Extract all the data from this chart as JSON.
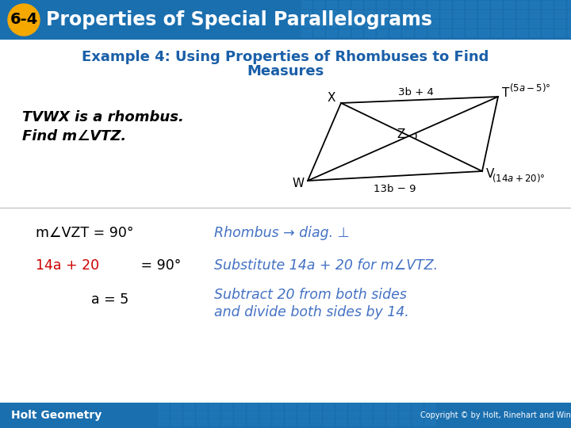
{
  "header_bg": "#1a6faf",
  "header_text": "Properties of Special Parallelograms",
  "header_badge_bg": "#f5a800",
  "header_badge_text": "6-4",
  "title_text_line1": "Example 4: Using Properties of Rhombuses to Find",
  "title_text_line2": "Measures",
  "title_color": "#1a5fa8",
  "body_bg": "#ffffff",
  "problem_line1": "TVWX is a rhombus.",
  "problem_line2": "Find m∠VTZ.",
  "row1_left": "m∠VZT = 90°",
  "row1_right": "Rhombus → diag. ⊥",
  "row2_left_red": "14a + 20",
  "row2_left_black": " = 90°",
  "row2_right": "Substitute 14a + 20 for m∠VTZ.",
  "row3_center": "a = 5",
  "row3_right_line1": "Subtract 20 from both sides",
  "row3_right_line2": "and divide both sides by 14.",
  "red_color": "#cc0000",
  "blue_color": "#4472c4",
  "footer_text": "Holt Geometry",
  "footer_bg": "#1a6faf",
  "copyright_text": "Copyright © by Holt, Rinehart and Winston. All Rights Reserved.",
  "separator_color": "#bbbbbb",
  "tile_color": "#2a85c5"
}
